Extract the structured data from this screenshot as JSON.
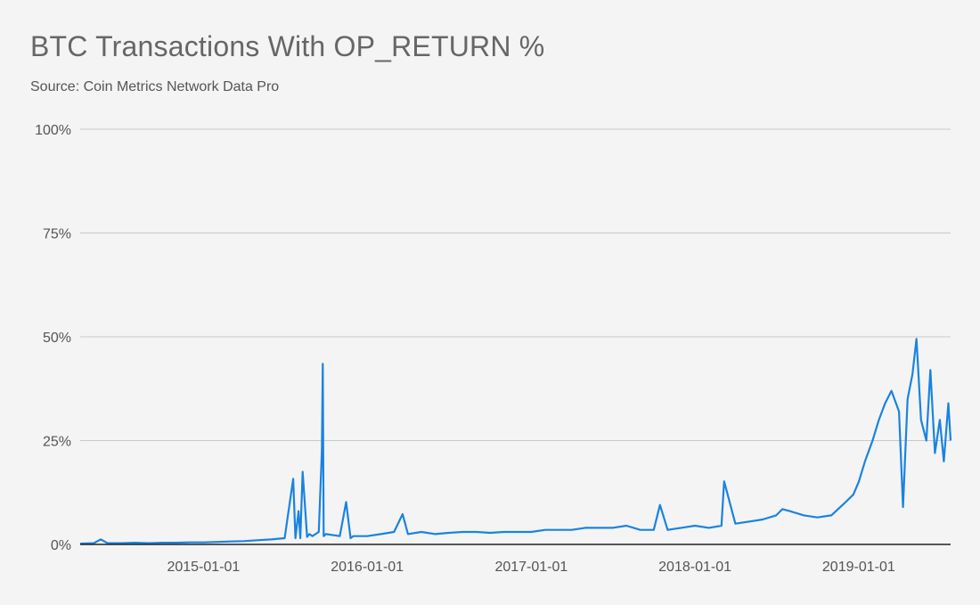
{
  "chart_data": {
    "type": "line",
    "title": "BTC Transactions With OP_RETURN %",
    "subtitle": "Source: Coin Metrics Network Data Pro",
    "xlabel": "",
    "ylabel": "",
    "xlim": [
      "2014-04-01",
      "2019-07-25"
    ],
    "ylim": [
      0,
      100
    ],
    "y_ticks": [
      0,
      25,
      50,
      75,
      100
    ],
    "y_tick_labels": [
      "0%",
      "25%",
      "50%",
      "75%",
      "100%"
    ],
    "x_tick_labels": [
      "2015-01-01",
      "2016-01-01",
      "2017-01-01",
      "2018-01-01",
      "2019-01-01"
    ],
    "grid": true,
    "legend": "none",
    "color": "#1a83e0",
    "series": [
      {
        "x": [
          "2014-04-01",
          "2014-05-01",
          "2014-05-17",
          "2014-06-01",
          "2014-07-01",
          "2014-08-01",
          "2014-09-01",
          "2014-10-01",
          "2014-11-01",
          "2014-12-01",
          "2015-01-01",
          "2015-02-01",
          "2015-03-01",
          "2015-04-01",
          "2015-05-01",
          "2015-06-01",
          "2015-07-01",
          "2015-07-20",
          "2015-07-25",
          "2015-08-01",
          "2015-08-05",
          "2015-08-10",
          "2015-08-20",
          "2015-08-25",
          "2015-09-01",
          "2015-09-15",
          "2015-09-22",
          "2015-09-24",
          "2015-09-26",
          "2015-10-01",
          "2015-11-01",
          "2015-11-15",
          "2015-11-25",
          "2015-12-01",
          "2016-01-01",
          "2016-02-01",
          "2016-03-01",
          "2016-03-20",
          "2016-04-01",
          "2016-05-01",
          "2016-06-01",
          "2016-07-01",
          "2016-08-01",
          "2016-09-01",
          "2016-10-01",
          "2016-11-01",
          "2016-12-01",
          "2017-01-01",
          "2017-02-01",
          "2017-03-01",
          "2017-04-01",
          "2017-05-01",
          "2017-06-01",
          "2017-07-01",
          "2017-08-01",
          "2017-09-01",
          "2017-10-01",
          "2017-10-15",
          "2017-11-01",
          "2017-12-01",
          "2018-01-01",
          "2018-02-01",
          "2018-03-01",
          "2018-03-07",
          "2018-04-01",
          "2018-05-01",
          "2018-06-01",
          "2018-07-01",
          "2018-07-15",
          "2018-08-01",
          "2018-09-01",
          "2018-10-01",
          "2018-11-01",
          "2018-12-01",
          "2018-12-20",
          "2019-01-01",
          "2019-01-15",
          "2019-02-01",
          "2019-02-15",
          "2019-03-01",
          "2019-03-15",
          "2019-04-01",
          "2019-04-10",
          "2019-04-20",
          "2019-05-01",
          "2019-05-10",
          "2019-05-20",
          "2019-06-01",
          "2019-06-10",
          "2019-06-20",
          "2019-07-01",
          "2019-07-10",
          "2019-07-20",
          "2019-07-25"
        ],
        "y": [
          0.2,
          0.3,
          1.2,
          0.3,
          0.3,
          0.4,
          0.3,
          0.4,
          0.4,
          0.5,
          0.5,
          0.6,
          0.7,
          0.8,
          1.0,
          1.2,
          1.5,
          15.8,
          1.5,
          8.0,
          1.5,
          17.5,
          1.8,
          2.5,
          2.0,
          3.0,
          22.5,
          43.5,
          2.0,
          2.5,
          2.0,
          10.2,
          1.5,
          2.0,
          2.0,
          2.5,
          3.0,
          7.3,
          2.5,
          3.0,
          2.5,
          2.8,
          3.0,
          3.0,
          2.8,
          3.0,
          3.0,
          3.0,
          3.5,
          3.5,
          3.5,
          4.0,
          4.0,
          4.0,
          4.5,
          3.5,
          3.5,
          9.5,
          3.5,
          4.0,
          4.5,
          4.0,
          4.5,
          15.2,
          5.0,
          5.5,
          6.0,
          7.0,
          8.5,
          8.0,
          7.0,
          6.5,
          7.0,
          10.0,
          12.0,
          15.0,
          20.0,
          25.0,
          30.0,
          34.0,
          37.0,
          32.0,
          9.0,
          35.0,
          41.0,
          49.5,
          30.0,
          25.0,
          42.0,
          22.0,
          30.0,
          20.0,
          34.0,
          25.0
        ]
      }
    ]
  }
}
